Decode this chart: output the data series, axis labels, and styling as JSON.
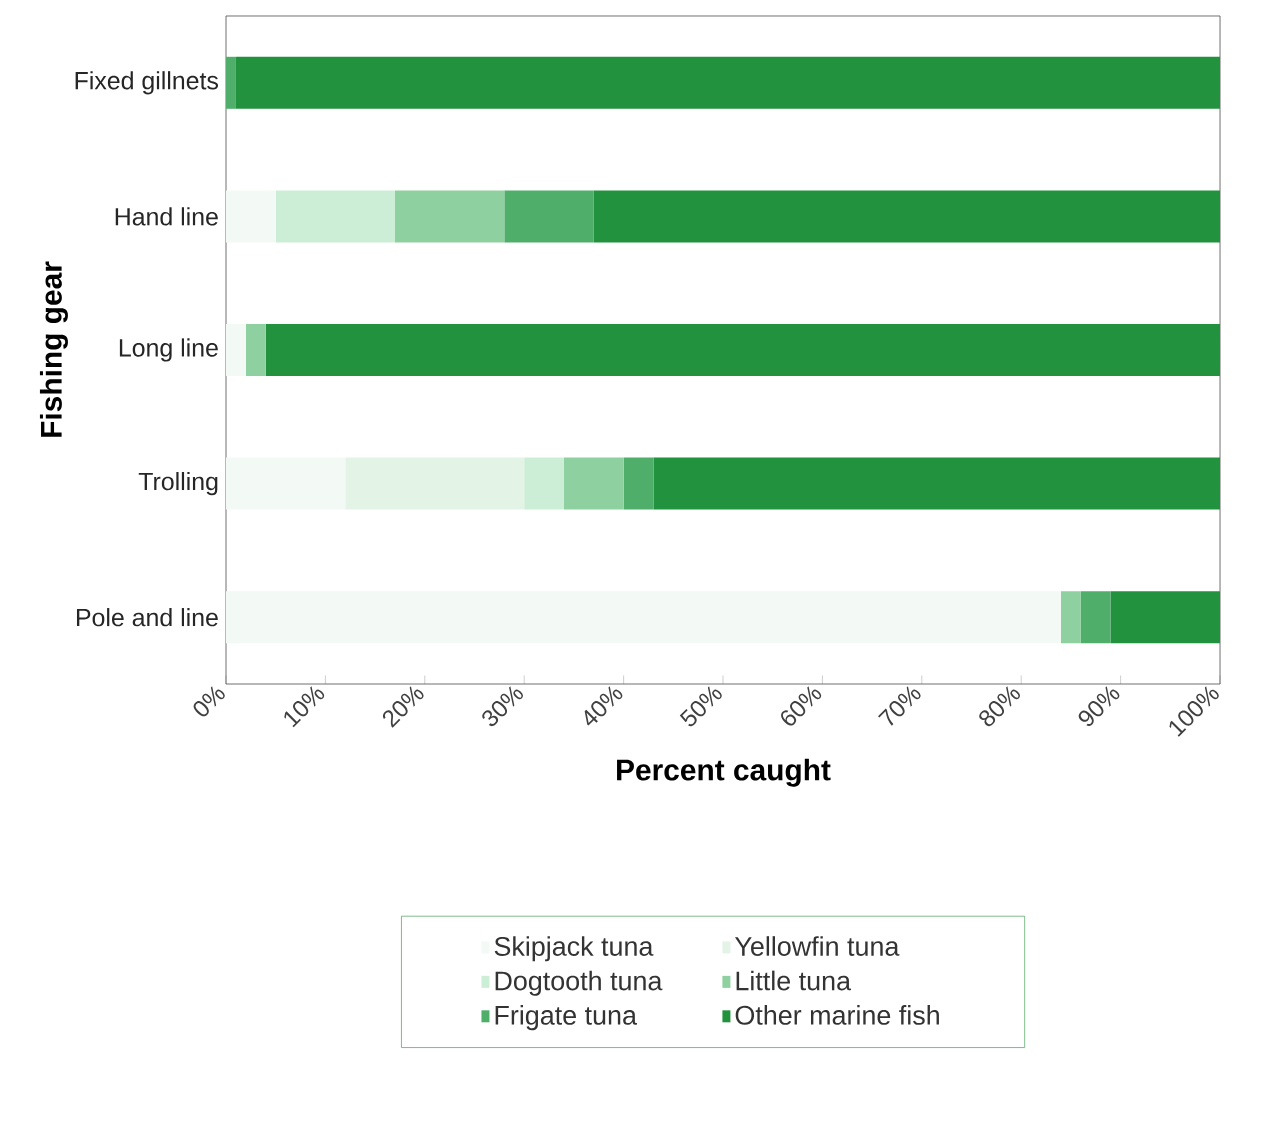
{
  "chart_data": {
    "type": "bar",
    "orientation": "horizontal",
    "stacked": true,
    "xlabel": "Percent caught",
    "ylabel": "Fishing gear",
    "categories": [
      "Fixed gillnets",
      "Hand line",
      "Long line",
      "Trolling",
      "Pole and line"
    ],
    "series": [
      {
        "name": "Skipjack tuna",
        "color": "#f3f9f4",
        "values": [
          0,
          5,
          2,
          12,
          84
        ]
      },
      {
        "name": "Yellowfin tuna",
        "color": "#e3f4e7",
        "values": [
          0,
          0,
          0,
          18,
          0
        ]
      },
      {
        "name": "Dogtooth tuna",
        "color": "#cdeed6",
        "values": [
          0,
          12,
          0,
          4,
          0
        ]
      },
      {
        "name": "Little tuna",
        "color": "#8fd0a0",
        "values": [
          0,
          11,
          2,
          6,
          2
        ]
      },
      {
        "name": "Frigate tuna",
        "color": "#4fae6a",
        "values": [
          1,
          9,
          0,
          3,
          3
        ]
      },
      {
        "name": "Other marine fish",
        "color": "#23923f",
        "values": [
          99,
          63,
          96,
          57,
          11
        ]
      }
    ],
    "xlim": [
      0,
      100
    ],
    "xticks": [
      {
        "value": 0,
        "label": "0%"
      },
      {
        "value": 10,
        "label": "10%"
      },
      {
        "value": 20,
        "label": "20%"
      },
      {
        "value": 30,
        "label": "30%"
      },
      {
        "value": 40,
        "label": "40%"
      },
      {
        "value": 50,
        "label": "50%"
      },
      {
        "value": 60,
        "label": "60%"
      },
      {
        "value": 70,
        "label": "70%"
      },
      {
        "value": 80,
        "label": "80%"
      },
      {
        "value": 90,
        "label": "90%"
      },
      {
        "value": 100,
        "label": "100%"
      }
    ],
    "legend": "bottom"
  }
}
